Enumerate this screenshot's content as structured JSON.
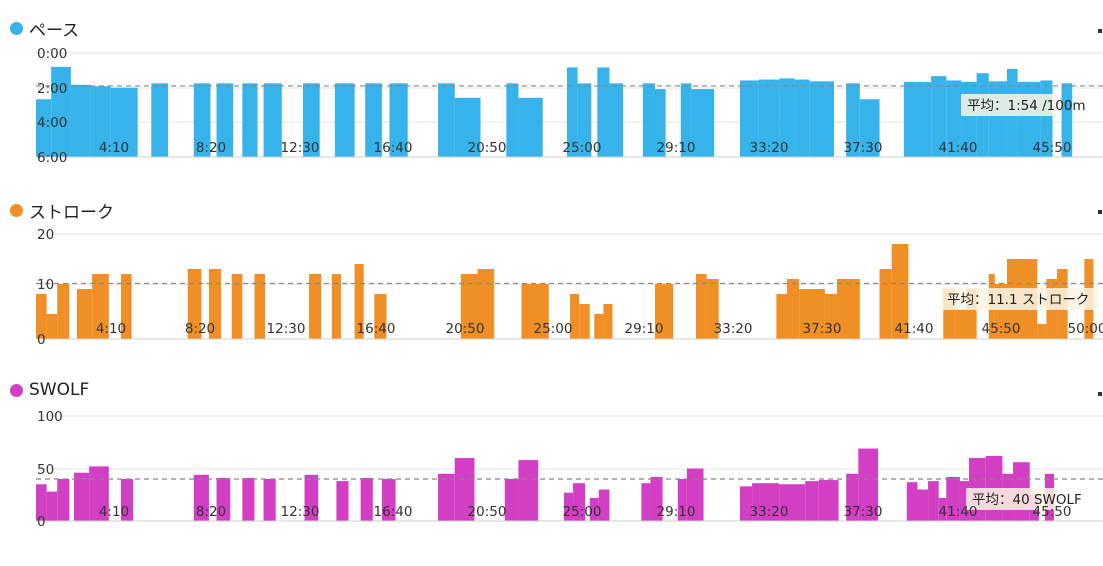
{
  "chart_data": [
    {
      "type": "bar",
      "title": "ペース",
      "color": "#36b3ea",
      "y_tick_labels": [
        "0:00",
        "2:00",
        "4:00",
        "6:00"
      ],
      "ylim_seconds_per_100m": [
        0,
        360
      ],
      "y_inverted": true,
      "x_tick_labels": [
        "4:10",
        "8:20",
        "12:30",
        "16:40",
        "20:50",
        "25:00",
        "29:10",
        "33:20",
        "37:30",
        "41:40",
        "45:50"
      ],
      "average_label": "平均：1:54 /100m",
      "average_value": 114,
      "bars": [
        {
          "x": [
            0,
            1.0
          ],
          "y": 160
        },
        {
          "x": [
            1.0,
            2.3
          ],
          "y": 48
        },
        {
          "x": [
            2.3,
            3.6
          ],
          "y": 110
        },
        {
          "x": [
            3.6,
            4.9
          ],
          "y": 115
        },
        {
          "x": [
            4.9,
            6.7
          ],
          "y": 120
        },
        {
          "x": [
            7.6,
            8.7
          ],
          "y": 105
        },
        {
          "x": [
            10.4,
            11.5
          ],
          "y": 105
        },
        {
          "x": [
            11.9,
            13.0
          ],
          "y": 105
        },
        {
          "x": [
            13.6,
            14.6
          ],
          "y": 105
        },
        {
          "x": [
            15.0,
            16.2
          ],
          "y": 105
        },
        {
          "x": [
            17.6,
            18.7
          ],
          "y": 105
        },
        {
          "x": [
            19.7,
            21.0
          ],
          "y": 105
        },
        {
          "x": [
            21.7,
            22.8
          ],
          "y": 105
        },
        {
          "x": [
            23.3,
            24.5
          ],
          "y": 105
        },
        {
          "x": [
            26.5,
            27.6
          ],
          "y": 105
        },
        {
          "x": [
            27.6,
            29.3
          ],
          "y": 155
        },
        {
          "x": [
            31.0,
            31.8
          ],
          "y": 105
        },
        {
          "x": [
            31.8,
            33.4
          ],
          "y": 155
        },
        {
          "x": [
            35.0,
            35.7
          ],
          "y": 50
        },
        {
          "x": [
            35.7,
            36.6
          ],
          "y": 105
        },
        {
          "x": [
            37.0,
            37.8
          ],
          "y": 50
        },
        {
          "x": [
            37.8,
            38.7
          ],
          "y": 105
        },
        {
          "x": [
            40.0,
            40.8
          ],
          "y": 105
        },
        {
          "x": [
            40.8,
            41.5
          ],
          "y": 125
        },
        {
          "x": [
            42.5,
            43.2
          ],
          "y": 105
        },
        {
          "x": [
            43.2,
            44.7
          ],
          "y": 125
        },
        {
          "x": [
            46.4,
            47.6
          ],
          "y": 95
        },
        {
          "x": [
            47.6,
            49.0
          ],
          "y": 92
        },
        {
          "x": [
            49.0,
            50.0
          ],
          "y": 88
        },
        {
          "x": [
            50.0,
            51.0
          ],
          "y": 92
        },
        {
          "x": [
            51.0,
            52.6
          ],
          "y": 98
        },
        {
          "x": [
            53.4,
            54.3
          ],
          "y": 105
        },
        {
          "x": [
            54.3,
            55.6
          ],
          "y": 160
        },
        {
          "x": [
            57.2,
            59.0
          ],
          "y": 100
        },
        {
          "x": [
            59.0,
            60.0
          ],
          "y": 80
        },
        {
          "x": [
            60.0,
            61.0
          ],
          "y": 95
        },
        {
          "x": [
            61.0,
            62.0
          ],
          "y": 100
        },
        {
          "x": [
            62.0,
            62.8
          ],
          "y": 70
        },
        {
          "x": [
            62.8,
            64.0
          ],
          "y": 98
        },
        {
          "x": [
            64.0,
            64.7
          ],
          "y": 55
        },
        {
          "x": [
            64.7,
            66.2
          ],
          "y": 100
        },
        {
          "x": [
            66.2,
            67.0
          ],
          "y": 95
        },
        {
          "x": [
            67.6,
            68.3
          ],
          "y": 105
        }
      ]
    },
    {
      "type": "bar",
      "title": "ストローク",
      "color": "#ef8f26",
      "y_tick_labels": [
        "20",
        "10",
        "0"
      ],
      "ylim": [
        0,
        21
      ],
      "x_tick_labels": [
        "4:10",
        "8:20",
        "12:30",
        "16:40",
        "20:50",
        "25:00",
        "29:10",
        "33:20",
        "37:30",
        "41:40",
        "45:50",
        "50:00"
      ],
      "average_label": "平均：11.1 ストローク",
      "average_value": 11.1,
      "bars": [
        {
          "x": [
            0,
            0.7
          ],
          "y": 9
        },
        {
          "x": [
            0.7,
            1.4
          ],
          "y": 5
        },
        {
          "x": [
            1.4,
            2.2
          ],
          "y": 11
        },
        {
          "x": [
            2.7,
            3.7
          ],
          "y": 10
        },
        {
          "x": [
            3.7,
            4.8
          ],
          "y": 13
        },
        {
          "x": [
            5.6,
            6.3
          ],
          "y": 13
        },
        {
          "x": [
            10.0,
            10.9
          ],
          "y": 14
        },
        {
          "x": [
            11.4,
            12.2
          ],
          "y": 14
        },
        {
          "x": [
            12.9,
            13.6
          ],
          "y": 13
        },
        {
          "x": [
            14.4,
            15.1
          ],
          "y": 13
        },
        {
          "x": [
            18.0,
            18.8
          ],
          "y": 13
        },
        {
          "x": [
            19.5,
            20.1
          ],
          "y": 13
        },
        {
          "x": [
            21.0,
            21.6
          ],
          "y": 15
        },
        {
          "x": [
            22.3,
            23.1
          ],
          "y": 9
        },
        {
          "x": [
            28.0,
            29.1
          ],
          "y": 13
        },
        {
          "x": [
            29.1,
            30.2
          ],
          "y": 14
        },
        {
          "x": [
            32.0,
            33.8
          ],
          "y": 11
        },
        {
          "x": [
            35.2,
            35.8
          ],
          "y": 9
        },
        {
          "x": [
            35.8,
            36.5
          ],
          "y": 7
        },
        {
          "x": [
            36.8,
            37.4
          ],
          "y": 5
        },
        {
          "x": [
            37.4,
            38.0
          ],
          "y": 7
        },
        {
          "x": [
            40.8,
            42.0
          ],
          "y": 11
        },
        {
          "x": [
            43.5,
            44.2
          ],
          "y": 13
        },
        {
          "x": [
            44.2,
            45.0
          ],
          "y": 12
        },
        {
          "x": [
            48.8,
            49.5
          ],
          "y": 9
        },
        {
          "x": [
            49.5,
            50.3
          ],
          "y": 12
        },
        {
          "x": [
            50.3,
            52.0
          ],
          "y": 10
        },
        {
          "x": [
            52.0,
            52.8
          ],
          "y": 9
        },
        {
          "x": [
            52.8,
            54.3
          ],
          "y": 12
        },
        {
          "x": [
            55.6,
            56.4
          ],
          "y": 14
        },
        {
          "x": [
            56.4,
            57.5
          ],
          "y": 19
        },
        {
          "x": [
            59.8,
            60.6
          ],
          "y": 10
        },
        {
          "x": [
            60.6,
            61.3
          ],
          "y": 6
        },
        {
          "x": [
            61.3,
            62.0
          ],
          "y": 10
        },
        {
          "x": [
            62.8,
            63.2
          ],
          "y": 13
        },
        {
          "x": [
            63.2,
            64.0
          ],
          "y": 11
        },
        {
          "x": [
            64.0,
            66.0
          ],
          "y": 16
        },
        {
          "x": [
            66.0,
            66.6
          ],
          "y": 3
        },
        {
          "x": [
            66.6,
            67.3
          ],
          "y": 12
        },
        {
          "x": [
            67.3,
            68.0
          ],
          "y": 14
        },
        {
          "x": [
            69.1,
            69.7
          ],
          "y": 16
        }
      ]
    },
    {
      "type": "bar",
      "title": "SWOLF",
      "color": "#d33fc4",
      "y_tick_labels": [
        "100",
        "50",
        "0"
      ],
      "ylim": [
        0,
        100
      ],
      "x_tick_labels": [
        "4:10",
        "8:20",
        "12:30",
        "16:40",
        "20:50",
        "25:00",
        "29:10",
        "33:20",
        "37:30",
        "41:40",
        "45:50"
      ],
      "average_label": "平均：40 SWOLF",
      "average_value": 40,
      "bars": [
        {
          "x": [
            0,
            0.7
          ],
          "y": 35
        },
        {
          "x": [
            0.7,
            1.4
          ],
          "y": 28
        },
        {
          "x": [
            1.4,
            2.2
          ],
          "y": 40
        },
        {
          "x": [
            2.5,
            3.5
          ],
          "y": 46
        },
        {
          "x": [
            3.5,
            4.8
          ],
          "y": 52
        },
        {
          "x": [
            5.6,
            6.4
          ],
          "y": 40
        },
        {
          "x": [
            10.4,
            11.4
          ],
          "y": 44
        },
        {
          "x": [
            11.9,
            12.8
          ],
          "y": 41
        },
        {
          "x": [
            13.6,
            14.4
          ],
          "y": 41
        },
        {
          "x": [
            15.0,
            15.8
          ],
          "y": 40
        },
        {
          "x": [
            17.7,
            18.6
          ],
          "y": 44
        },
        {
          "x": [
            19.8,
            20.6
          ],
          "y": 38
        },
        {
          "x": [
            21.4,
            22.2
          ],
          "y": 41
        },
        {
          "x": [
            22.8,
            23.7
          ],
          "y": 40
        },
        {
          "x": [
            26.5,
            27.6
          ],
          "y": 45
        },
        {
          "x": [
            27.6,
            28.9
          ],
          "y": 60
        },
        {
          "x": [
            30.9,
            31.8
          ],
          "y": 40
        },
        {
          "x": [
            31.8,
            33.1
          ],
          "y": 58
        },
        {
          "x": [
            34.8,
            35.4
          ],
          "y": 27
        },
        {
          "x": [
            35.4,
            36.2
          ],
          "y": 36
        },
        {
          "x": [
            36.5,
            37.1
          ],
          "y": 22
        },
        {
          "x": [
            37.1,
            37.8
          ],
          "y": 30
        },
        {
          "x": [
            39.9,
            40.5
          ],
          "y": 36
        },
        {
          "x": [
            40.5,
            41.3
          ],
          "y": 42
        },
        {
          "x": [
            42.3,
            42.9
          ],
          "y": 40
        },
        {
          "x": [
            42.9,
            44.0
          ],
          "y": 50
        },
        {
          "x": [
            46.4,
            47.2
          ],
          "y": 33
        },
        {
          "x": [
            47.2,
            49.0
          ],
          "y": 36
        },
        {
          "x": [
            49.0,
            50.7
          ],
          "y": 35
        },
        {
          "x": [
            50.7,
            51.6
          ],
          "y": 38
        },
        {
          "x": [
            51.6,
            52.9
          ],
          "y": 39
        },
        {
          "x": [
            53.4,
            54.2
          ],
          "y": 45
        },
        {
          "x": [
            54.2,
            55.5
          ],
          "y": 69
        },
        {
          "x": [
            57.4,
            58.1
          ],
          "y": 37
        },
        {
          "x": [
            58.1,
            58.8
          ],
          "y": 30
        },
        {
          "x": [
            58.8,
            59.5
          ],
          "y": 38
        },
        {
          "x": [
            59.5,
            60.0
          ],
          "y": 22
        },
        {
          "x": [
            60.0,
            60.9
          ],
          "y": 42
        },
        {
          "x": [
            60.9,
            61.5
          ],
          "y": 38
        },
        {
          "x": [
            61.5,
            62.6
          ],
          "y": 60
        },
        {
          "x": [
            62.6,
            63.7
          ],
          "y": 62
        },
        {
          "x": [
            63.7,
            64.4
          ],
          "y": 45
        },
        {
          "x": [
            64.4,
            65.5
          ],
          "y": 56
        },
        {
          "x": [
            65.5,
            66.1
          ],
          "y": 26
        },
        {
          "x": [
            66.5,
            67.1
          ],
          "y": 45
        }
      ]
    }
  ]
}
